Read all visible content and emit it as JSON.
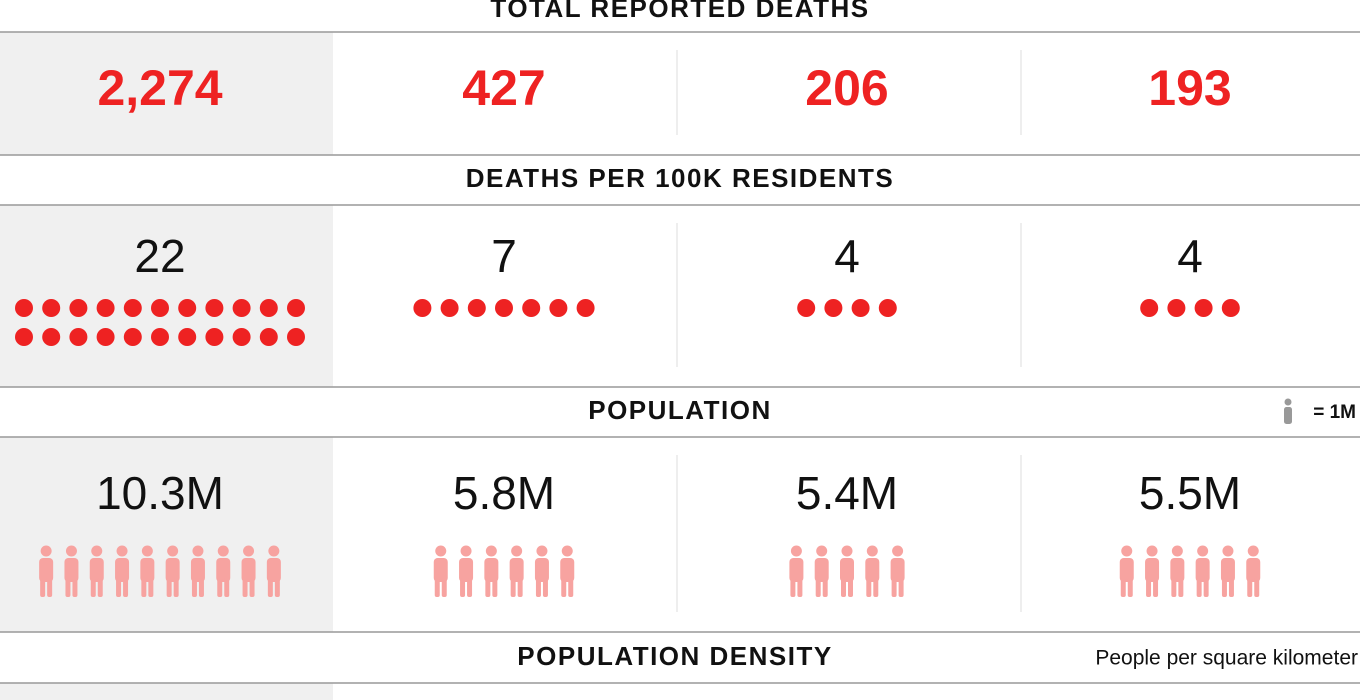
{
  "sections": [
    {
      "title": "TOTAL REPORTED DEATHS",
      "values": [
        "2,274",
        "427",
        "206",
        "193"
      ]
    },
    {
      "title": "DEATHS PER 100K RESIDENTS",
      "values": [
        22,
        7,
        4,
        4
      ]
    },
    {
      "title": "POPULATION",
      "note": "= 1M",
      "values": [
        "10.3M",
        "5.8M",
        "5.4M",
        "5.5M"
      ],
      "icons": [
        10,
        6,
        5,
        6
      ]
    },
    {
      "title": "POPULATION DENSITY",
      "note": "People per square kilometer"
    }
  ]
}
